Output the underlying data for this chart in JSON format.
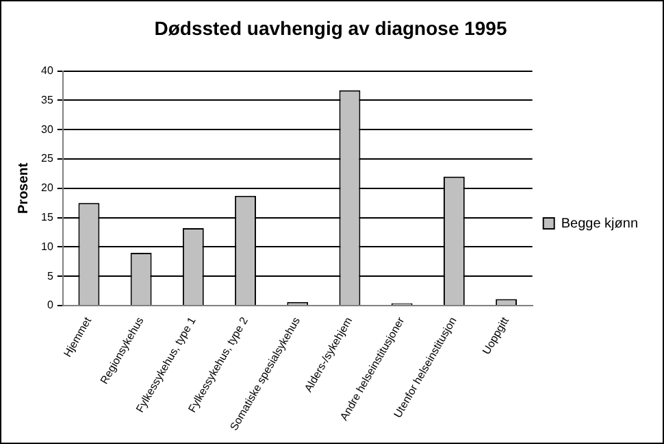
{
  "chart_data": {
    "type": "bar",
    "title": "Dødssted uavhengig av diagnose 1995",
    "ylabel": "Prosent",
    "categories": [
      "Hjemmet",
      "Regionsykehus",
      "Fylkessykehus, type 1",
      "Fylkessykehus, type 2",
      "Somatiske spesialsykehus",
      "Alders-/sykehjem",
      "Andre helseinstitusjoner",
      "Utenfor helseinstitusjon",
      "Uoppgitt"
    ],
    "series": [
      {
        "name": "Begge kjønn",
        "color": "#c0c0c0",
        "values": [
          17.5,
          9,
          13.2,
          18.7,
          0.6,
          36.7,
          0.4,
          22,
          1.1
        ]
      }
    ],
    "ylim": [
      0,
      40
    ],
    "yticks": [
      0,
      5,
      10,
      15,
      20,
      25,
      30,
      35,
      40
    ],
    "grid": "y",
    "legend": "right"
  }
}
